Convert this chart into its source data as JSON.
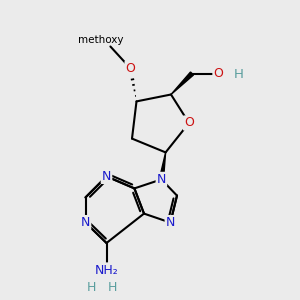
{
  "bg_color": "#ebebeb",
  "bond_color": "#000000",
  "atom_colors": {
    "N": "#1a1acc",
    "O": "#cc1111",
    "H": "#5a9e9e",
    "C": "#000000"
  },
  "figsize": [
    3.0,
    3.0
  ],
  "dpi": 100
}
